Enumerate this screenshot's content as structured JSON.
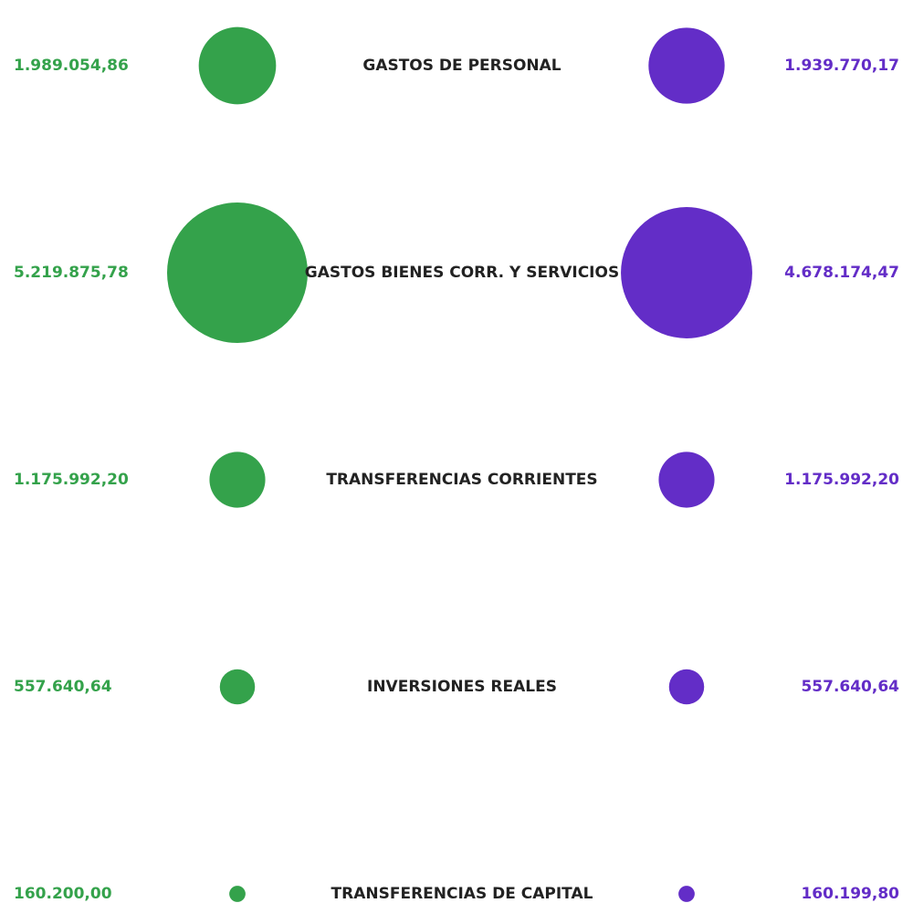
{
  "chart_data": {
    "type": "bubble-compare",
    "categories": [
      "GASTOS DE PERSONAL",
      "GASTOS BIENES CORR. Y SERVICIOS",
      "TRANSFERENCIAS CORRIENTES",
      "INVERSIONES REALES",
      "TRANSFERENCIAS DE CAPITAL"
    ],
    "series": [
      {
        "color": "#34a24b",
        "values": [
          1989054.86,
          5219875.78,
          1175992.2,
          557640.64,
          160200.0
        ],
        "value_labels": [
          "1.989.054,86",
          "5.219.875,78",
          "1.175.992,20",
          "557.640,64",
          "160.200,00"
        ]
      },
      {
        "color": "#632dc7",
        "values": [
          1939770.17,
          4678174.47,
          1175992.2,
          557640.64,
          160199.8
        ],
        "value_labels": [
          "1.939.770,17",
          "4.678.174,47",
          "1.175.992,20",
          "557.640,64",
          "160.199,80"
        ]
      }
    ]
  }
}
